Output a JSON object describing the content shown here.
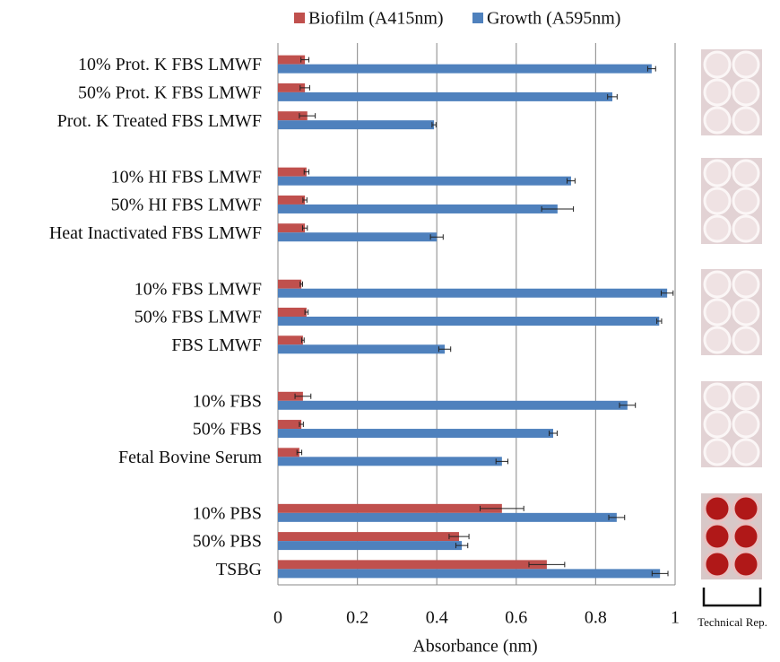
{
  "chart_data": {
    "type": "hbar",
    "categories": [
      "10% Prot. K FBS LMWF",
      "50% Prot. K FBS LMWF",
      "Prot. K Treated FBS LMWF",
      null,
      "10% HI FBS LMWF",
      "50% HI FBS LMWF",
      "Heat Inactivated FBS LMWF",
      null,
      "10% FBS LMWF",
      "50% FBS LMWF",
      "FBS LMWF",
      null,
      "10% FBS",
      "50% FBS",
      "Fetal Bovine Serum",
      null,
      "10% PBS",
      "50% PBS",
      "TSBG"
    ],
    "series": [
      {
        "name": "Biofilm (A415nm)",
        "color": "#c0504d",
        "values": [
          0.068,
          0.068,
          0.074,
          null,
          0.072,
          0.068,
          0.068,
          null,
          0.059,
          0.072,
          0.063,
          null,
          0.063,
          0.059,
          0.054,
          null,
          0.564,
          0.456,
          0.677
        ],
        "errors": [
          0.01,
          0.012,
          0.02,
          null,
          0.006,
          0.005,
          0.006,
          null,
          0.003,
          0.004,
          0.003,
          null,
          0.02,
          0.005,
          0.006,
          null,
          0.055,
          0.025,
          0.045
        ]
      },
      {
        "name": "Growth (A595nm)",
        "color": "#4f81bd",
        "values": [
          0.941,
          0.842,
          0.393,
          null,
          0.738,
          0.704,
          0.4,
          null,
          0.98,
          0.96,
          0.42,
          null,
          0.88,
          0.693,
          0.564,
          null,
          0.853,
          0.463,
          0.962
        ],
        "errors": [
          0.01,
          0.012,
          0.005,
          null,
          0.01,
          0.04,
          0.016,
          null,
          0.015,
          0.006,
          0.015,
          null,
          0.02,
          0.01,
          0.015,
          null,
          0.02,
          0.015,
          0.02
        ]
      }
    ],
    "xlabel": "Absorbance (nm)",
    "xlim": [
      0,
      1
    ],
    "xticks": [
      0,
      0.2,
      0.4,
      0.6,
      0.8,
      1
    ],
    "grid": true,
    "legend": "top",
    "annotation": "Technical Rep."
  }
}
